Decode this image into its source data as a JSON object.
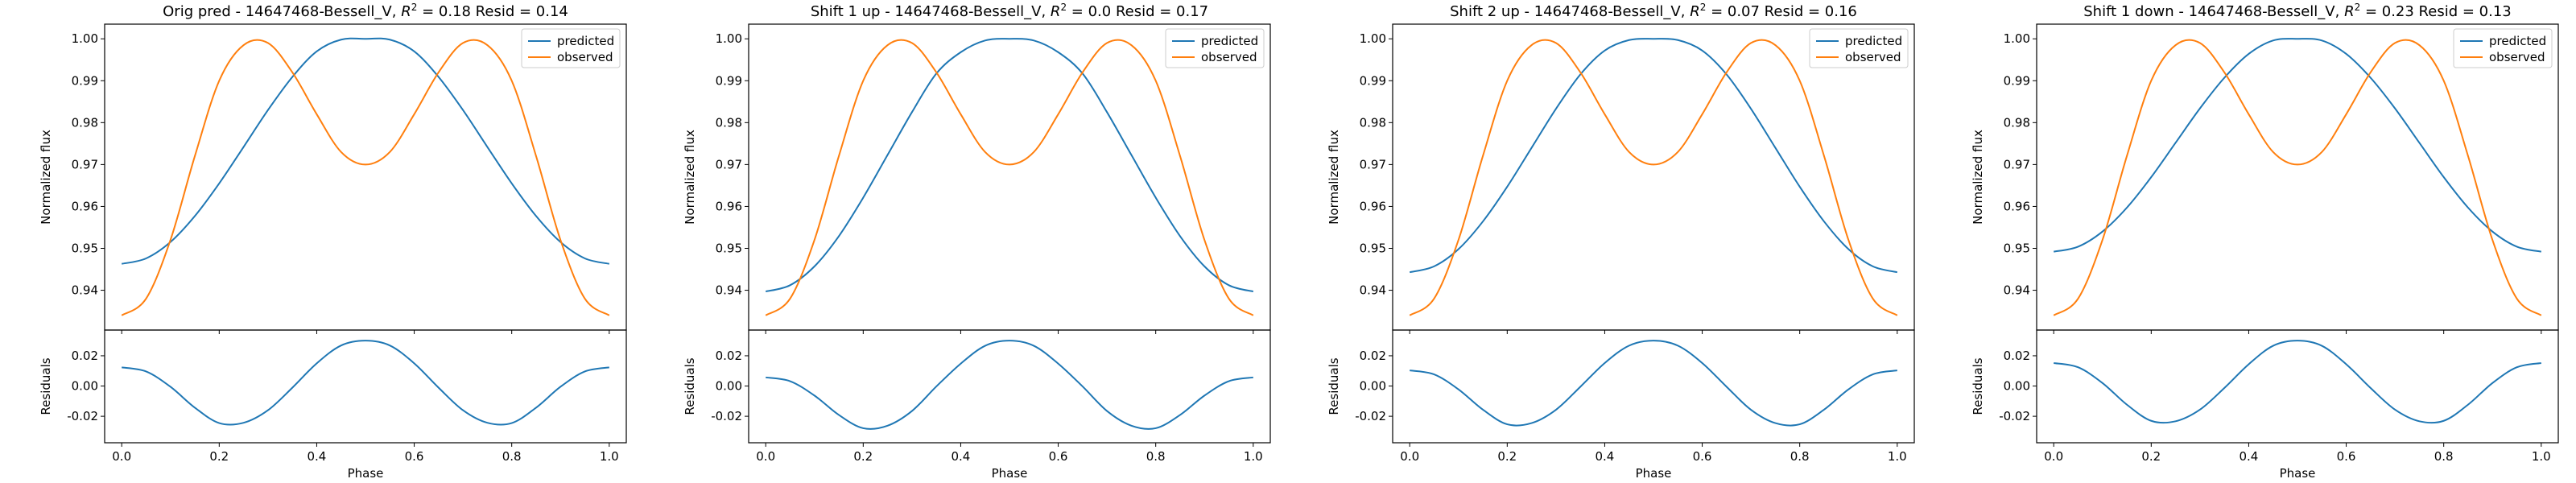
{
  "colors": {
    "predicted": "#1f77b4",
    "observed": "#ff7f0e"
  },
  "chart_data": [
    {
      "type": "line",
      "title_prefix": "Orig pred - 14647468-Bessell_V, ",
      "title_r2": "R",
      "title_r2_value": " = 0.18 Resid = 0.14",
      "xlabel": "Phase",
      "ylabel_top": "Normalized flux",
      "ylabel_bottom": "Residuals",
      "xlim": [
        -0.035,
        1.035
      ],
      "ylim_top": [
        0.9305,
        1.0035
      ],
      "ylim_bottom": [
        -0.0375,
        0.037
      ],
      "xticks": [
        "0.0",
        "0.2",
        "0.4",
        "0.6",
        "0.8",
        "1.0"
      ],
      "yticks_top": [
        "0.94",
        "0.95",
        "0.96",
        "0.97",
        "0.98",
        "0.99",
        "1.00"
      ],
      "yticks_bottom": [
        "-0.02",
        "0.00",
        "0.02"
      ],
      "legend": [
        "predicted",
        "observed"
      ],
      "legend_position": "upper right",
      "series": [
        {
          "name": "predicted",
          "x": [
            0.0,
            0.05,
            0.1,
            0.15,
            0.2,
            0.25,
            0.3,
            0.35,
            0.4,
            0.45,
            0.5,
            0.55,
            0.6,
            0.65,
            0.7,
            0.75,
            0.8,
            0.85,
            0.9,
            0.95,
            1.0
          ],
          "values": [
            0.9463,
            0.9476,
            0.9515,
            0.9577,
            0.9655,
            0.9742,
            0.983,
            0.9909,
            0.997,
            0.9998,
            1.0,
            0.9998,
            0.997,
            0.9909,
            0.983,
            0.9742,
            0.9655,
            0.9577,
            0.9515,
            0.9476,
            0.9463
          ]
        },
        {
          "name": "observed",
          "x": [
            0.0,
            0.05,
            0.1,
            0.15,
            0.2,
            0.25,
            0.3,
            0.35,
            0.4,
            0.45,
            0.5,
            0.55,
            0.6,
            0.65,
            0.7,
            0.75,
            0.8,
            0.85,
            0.9,
            0.95,
            1.0
          ],
          "values": [
            0.934,
            0.938,
            0.952,
            0.972,
            0.99,
            0.9985,
            0.999,
            0.992,
            0.982,
            0.973,
            0.97,
            0.973,
            0.982,
            0.992,
            0.999,
            0.9985,
            0.99,
            0.972,
            0.952,
            0.938,
            0.934
          ]
        },
        {
          "name": "residuals",
          "x": [
            0.0,
            0.05,
            0.1,
            0.15,
            0.2,
            0.25,
            0.3,
            0.35,
            0.4,
            0.45,
            0.5,
            0.55,
            0.6,
            0.65,
            0.7,
            0.75,
            0.8,
            0.85,
            0.9,
            0.95,
            1.0
          ],
          "values": [
            0.0123,
            0.0096,
            -0.0005,
            -0.0143,
            -0.0245,
            -0.0243,
            -0.016,
            -0.0011,
            0.015,
            0.0268,
            0.03,
            0.0268,
            0.015,
            -0.0011,
            -0.016,
            -0.0243,
            -0.0245,
            -0.0143,
            -0.0005,
            0.0096,
            0.0123
          ]
        }
      ]
    },
    {
      "type": "line",
      "title_prefix": "Shift 1 up - 14647468-Bessell_V, ",
      "title_r2": "R",
      "title_r2_value": " = 0.0 Resid = 0.17",
      "xlabel": "Phase",
      "ylabel_top": "Normalized flux",
      "ylabel_bottom": "Residuals",
      "xlim": [
        -0.035,
        1.035
      ],
      "ylim_top": [
        0.9305,
        1.0035
      ],
      "ylim_bottom": [
        -0.0375,
        0.037
      ],
      "xticks": [
        "0.0",
        "0.2",
        "0.4",
        "0.6",
        "0.8",
        "1.0"
      ],
      "yticks_top": [
        "0.94",
        "0.95",
        "0.96",
        "0.97",
        "0.98",
        "0.99",
        "1.00"
      ],
      "yticks_bottom": [
        "-0.02",
        "0.00",
        "0.02"
      ],
      "legend": [
        "predicted",
        "observed"
      ],
      "legend_position": "upper right",
      "series": [
        {
          "name": "predicted",
          "x": [
            0.0,
            0.05,
            0.1,
            0.15,
            0.2,
            0.25,
            0.3,
            0.35,
            0.4,
            0.45,
            0.5,
            0.55,
            0.6,
            0.65,
            0.7,
            0.75,
            0.8,
            0.85,
            0.9,
            0.95,
            1.0
          ],
          "values": [
            0.9397,
            0.9412,
            0.9457,
            0.9529,
            0.9621,
            0.9723,
            0.9825,
            0.9917,
            0.9968,
            0.9996,
            1.0,
            0.9996,
            0.9968,
            0.9917,
            0.9825,
            0.9723,
            0.9621,
            0.9529,
            0.9457,
            0.9412,
            0.9397
          ]
        },
        {
          "name": "observed",
          "x": [
            0.0,
            0.05,
            0.1,
            0.15,
            0.2,
            0.25,
            0.3,
            0.35,
            0.4,
            0.45,
            0.5,
            0.55,
            0.6,
            0.65,
            0.7,
            0.75,
            0.8,
            0.85,
            0.9,
            0.95,
            1.0
          ],
          "values": [
            0.934,
            0.938,
            0.952,
            0.972,
            0.99,
            0.9985,
            0.999,
            0.992,
            0.982,
            0.973,
            0.97,
            0.973,
            0.982,
            0.992,
            0.999,
            0.9985,
            0.99,
            0.972,
            0.952,
            0.938,
            0.934
          ]
        },
        {
          "name": "residuals",
          "x": [
            0.0,
            0.05,
            0.1,
            0.15,
            0.2,
            0.25,
            0.3,
            0.35,
            0.4,
            0.45,
            0.5,
            0.55,
            0.6,
            0.65,
            0.7,
            0.75,
            0.8,
            0.85,
            0.9,
            0.95,
            1.0
          ],
          "values": [
            0.0057,
            0.0032,
            -0.0063,
            -0.0191,
            -0.0279,
            -0.0262,
            -0.0165,
            -0.0003,
            0.0148,
            0.0266,
            0.03,
            0.0266,
            0.0148,
            -0.0003,
            -0.0165,
            -0.0262,
            -0.0279,
            -0.0191,
            -0.0063,
            0.0032,
            0.0057
          ]
        }
      ]
    },
    {
      "type": "line",
      "title_prefix": "Shift 2 up - 14647468-Bessell_V, ",
      "title_r2": "R",
      "title_r2_value": " = 0.07 Resid = 0.16",
      "xlabel": "Phase",
      "ylabel_top": "Normalized flux",
      "ylabel_bottom": "Residuals",
      "xlim": [
        -0.035,
        1.035
      ],
      "ylim_top": [
        0.9305,
        1.0035
      ],
      "ylim_bottom": [
        -0.0375,
        0.037
      ],
      "xticks": [
        "0.0",
        "0.2",
        "0.4",
        "0.6",
        "0.8",
        "1.0"
      ],
      "yticks_top": [
        "0.94",
        "0.95",
        "0.96",
        "0.97",
        "0.98",
        "0.99",
        "1.00"
      ],
      "yticks_bottom": [
        "-0.02",
        "0.00",
        "0.02"
      ],
      "legend": [
        "predicted",
        "observed"
      ],
      "legend_position": "upper right",
      "series": [
        {
          "name": "predicted",
          "x": [
            0.0,
            0.05,
            0.1,
            0.15,
            0.2,
            0.25,
            0.3,
            0.35,
            0.4,
            0.45,
            0.5,
            0.55,
            0.6,
            0.65,
            0.7,
            0.75,
            0.8,
            0.85,
            0.9,
            0.95,
            1.0
          ],
          "values": [
            0.9443,
            0.9457,
            0.9498,
            0.9564,
            0.9647,
            0.974,
            0.9833,
            0.9915,
            0.9972,
            0.9997,
            1.0,
            0.9997,
            0.9972,
            0.9915,
            0.9833,
            0.974,
            0.9647,
            0.9564,
            0.9498,
            0.9457,
            0.9443
          ]
        },
        {
          "name": "observed",
          "x": [
            0.0,
            0.05,
            0.1,
            0.15,
            0.2,
            0.25,
            0.3,
            0.35,
            0.4,
            0.45,
            0.5,
            0.55,
            0.6,
            0.65,
            0.7,
            0.75,
            0.8,
            0.85,
            0.9,
            0.95,
            1.0
          ],
          "values": [
            0.934,
            0.938,
            0.952,
            0.972,
            0.99,
            0.9985,
            0.999,
            0.992,
            0.982,
            0.973,
            0.97,
            0.973,
            0.982,
            0.992,
            0.999,
            0.9985,
            0.99,
            0.972,
            0.952,
            0.938,
            0.934
          ]
        },
        {
          "name": "residuals",
          "x": [
            0.0,
            0.05,
            0.1,
            0.15,
            0.2,
            0.25,
            0.3,
            0.35,
            0.4,
            0.45,
            0.5,
            0.55,
            0.6,
            0.65,
            0.7,
            0.75,
            0.8,
            0.85,
            0.9,
            0.95,
            1.0
          ],
          "values": [
            0.0103,
            0.0077,
            -0.0022,
            -0.0156,
            -0.0253,
            -0.0245,
            -0.0157,
            -0.0005,
            0.0152,
            0.0267,
            0.03,
            0.0267,
            0.0152,
            -0.0005,
            -0.0157,
            -0.0245,
            -0.0253,
            -0.0156,
            -0.0022,
            0.0077,
            0.0103
          ]
        }
      ]
    },
    {
      "type": "line",
      "title_prefix": "Shift 1 down - 14647468-Bessell_V, ",
      "title_r2": "R",
      "title_r2_value": " = 0.23 Resid = 0.13",
      "xlabel": "Phase",
      "ylabel_top": "Normalized flux",
      "ylabel_bottom": "Residuals",
      "xlim": [
        -0.035,
        1.035
      ],
      "ylim_top": [
        0.9305,
        1.0035
      ],
      "ylim_bottom": [
        -0.0375,
        0.037
      ],
      "xticks": [
        "0.0",
        "0.2",
        "0.4",
        "0.6",
        "0.8",
        "1.0"
      ],
      "yticks_top": [
        "0.94",
        "0.95",
        "0.96",
        "0.97",
        "0.98",
        "0.99",
        "1.00"
      ],
      "yticks_bottom": [
        "-0.02",
        "0.00",
        "0.02"
      ],
      "legend": [
        "predicted",
        "observed"
      ],
      "legend_position": "upper right",
      "series": [
        {
          "name": "predicted",
          "x": [
            0.0,
            0.05,
            0.1,
            0.15,
            0.2,
            0.25,
            0.3,
            0.35,
            0.4,
            0.45,
            0.5,
            0.55,
            0.6,
            0.65,
            0.7,
            0.75,
            0.8,
            0.85,
            0.9,
            0.95,
            1.0
          ],
          "values": [
            0.9492,
            0.9504,
            0.954,
            0.9597,
            0.967,
            0.9752,
            0.9834,
            0.9907,
            0.9964,
            0.9996,
            1.0,
            0.9996,
            0.9964,
            0.9907,
            0.9834,
            0.9752,
            0.967,
            0.9597,
            0.954,
            0.9504,
            0.9492
          ]
        },
        {
          "name": "observed",
          "x": [
            0.0,
            0.05,
            0.1,
            0.15,
            0.2,
            0.25,
            0.3,
            0.35,
            0.4,
            0.45,
            0.5,
            0.55,
            0.6,
            0.65,
            0.7,
            0.75,
            0.8,
            0.85,
            0.9,
            0.95,
            1.0
          ],
          "values": [
            0.934,
            0.938,
            0.952,
            0.972,
            0.99,
            0.9985,
            0.999,
            0.992,
            0.982,
            0.973,
            0.97,
            0.973,
            0.982,
            0.992,
            0.999,
            0.9985,
            0.99,
            0.972,
            0.952,
            0.938,
            0.934
          ]
        },
        {
          "name": "residuals",
          "x": [
            0.0,
            0.05,
            0.1,
            0.15,
            0.2,
            0.25,
            0.3,
            0.35,
            0.4,
            0.45,
            0.5,
            0.55,
            0.6,
            0.65,
            0.7,
            0.75,
            0.8,
            0.85,
            0.9,
            0.95,
            1.0
          ],
          "values": [
            0.0152,
            0.0124,
            0.002,
            -0.0123,
            -0.023,
            -0.0233,
            -0.0156,
            -0.0013,
            0.0144,
            0.0266,
            0.03,
            0.0266,
            0.0144,
            -0.0013,
            -0.0156,
            -0.0233,
            -0.023,
            -0.0123,
            0.002,
            0.0124,
            0.0152
          ]
        }
      ]
    }
  ]
}
